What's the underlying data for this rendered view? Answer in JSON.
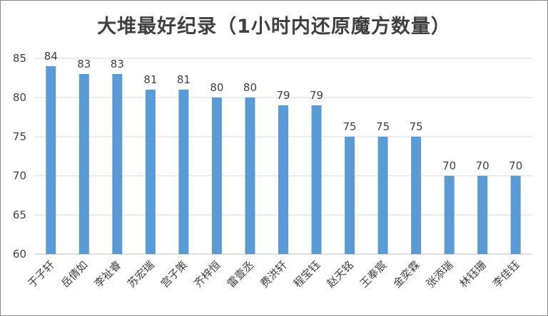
{
  "chart_data": {
    "type": "bar",
    "title": "大堆最好纪录（1小时内还原魔方数量）",
    "xlabel": "",
    "ylabel": "",
    "ylim": [
      60,
      85
    ],
    "yticks": [
      60,
      65,
      70,
      75,
      80,
      85
    ],
    "grid": true,
    "legend": "none",
    "bar_color": "#5B9BD5",
    "categories": [
      "于子轩",
      "岳倩如",
      "李祉睿",
      "苏宏瑞",
      "宫子策",
      "齐梓恒",
      "雷壹丞",
      "费洪轩",
      "程宝钰",
      "赵天铭",
      "王奉宸",
      "金奕霖",
      "张添瑞",
      "林钰珊",
      "李佳钰"
    ],
    "values": [
      84,
      83,
      83,
      81,
      81,
      80,
      80,
      79,
      79,
      75,
      75,
      75,
      70,
      70,
      70
    ]
  }
}
